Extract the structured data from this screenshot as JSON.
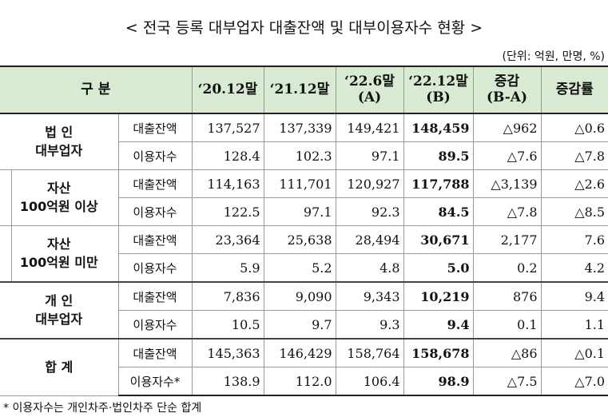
{
  "header": {
    "title": "< 전국 등록 대부업자 대출잔액 및 대부이용자수 현황 >",
    "unit": "(단위: 억원, 만명, %)"
  },
  "table": {
    "columns": [
      "구   분",
      "‘20.12말",
      "‘21.12말",
      "‘22.6말\n(A)",
      "‘22.12말\n(B)",
      "증감\n(B-A)",
      "증감률"
    ],
    "groups": [
      {
        "name": "법 인\n대부업자",
        "rows": [
          {
            "label": "대출잔액",
            "cells": [
              "137,527",
              "137,339",
              "149,421",
              "148,459",
              "△962",
              "△0.6"
            ]
          },
          {
            "label": "이용자수",
            "cells": [
              "128.4",
              "102.3",
              "97.1",
              "89.5",
              "△7.6",
              "△7.8"
            ]
          }
        ]
      },
      {
        "name": "자산\n100억원 이상",
        "rows": [
          {
            "label": "대출잔액",
            "cells": [
              "114,163",
              "111,701",
              "120,927",
              "117,788",
              "△3,139",
              "△2.6"
            ]
          },
          {
            "label": "이용자수",
            "cells": [
              "122.5",
              "97.1",
              "92.3",
              "84.5",
              "△7.8",
              "△8.5"
            ]
          }
        ]
      },
      {
        "name": "자산\n100억원 미만",
        "rows": [
          {
            "label": "대출잔액",
            "cells": [
              "23,364",
              "25,638",
              "28,494",
              "30,671",
              "2,177",
              "7.6"
            ]
          },
          {
            "label": "이용자수",
            "cells": [
              "5.9",
              "5.2",
              "4.8",
              "5.0",
              "0.2",
              "4.2"
            ]
          }
        ]
      },
      {
        "name": "개 인\n대부업자",
        "rows": [
          {
            "label": "대출잔액",
            "cells": [
              "7,836",
              "9,090",
              "9,343",
              "10,219",
              "876",
              "9.4"
            ]
          },
          {
            "label": "이용자수",
            "cells": [
              "10.5",
              "9.7",
              "9.3",
              "9.4",
              "0.1",
              "1.1"
            ]
          }
        ]
      },
      {
        "name": "합 계",
        "rows": [
          {
            "label": "대출잔액",
            "cells": [
              "145,363",
              "146,429",
              "158,764",
              "158,678",
              "△86",
              "△0.1"
            ]
          },
          {
            "label": "이용자수*",
            "cells": [
              "138.9",
              "112.0",
              "106.4",
              "98.9",
              "△7.5",
              "△7.0"
            ]
          }
        ]
      }
    ]
  },
  "footnote": "* 이용자수는 개인차주·법인차주 단순 합계"
}
